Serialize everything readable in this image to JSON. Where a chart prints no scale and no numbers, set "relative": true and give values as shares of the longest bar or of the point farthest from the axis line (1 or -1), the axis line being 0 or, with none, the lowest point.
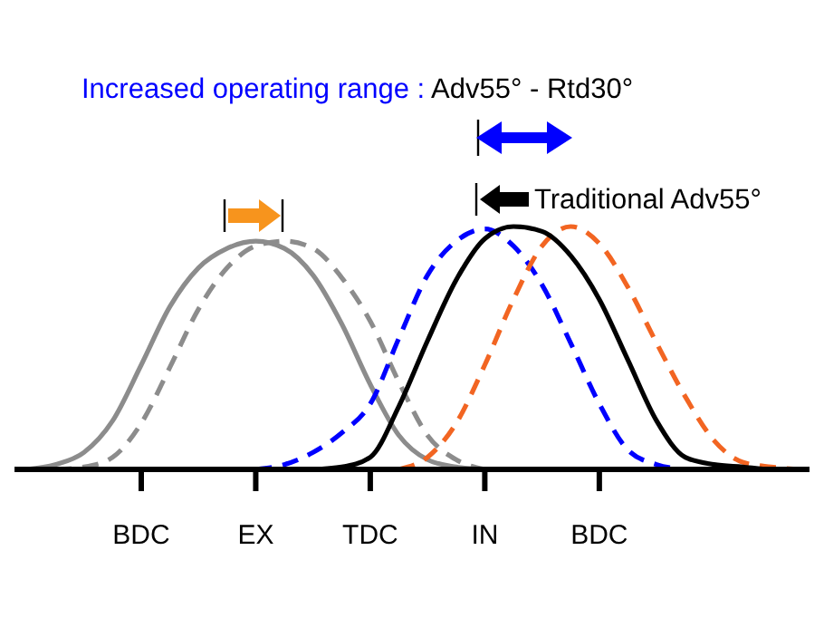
{
  "chart_data": {
    "type": "line",
    "relative": true,
    "title": "Increased operating range : Adv55° - Rtd30°",
    "annotations": [
      "Traditional Adv55°"
    ],
    "categories": [
      null,
      null,
      null,
      null,
      "BDC",
      null,
      null,
      null,
      "EX",
      null,
      null,
      null,
      "TDC",
      null,
      null,
      null,
      "IN",
      null,
      null,
      null,
      "BDC",
      null,
      null,
      null,
      null,
      null,
      null,
      null
    ],
    "grid": false,
    "marker": "none",
    "series": [
      {
        "color": "#8c8c8c",
        "line_style": "solid",
        "values": [
          0,
          0.02,
          0.07,
          0.2,
          0.43,
          0.67,
          0.83,
          0.91,
          0.94,
          0.91,
          0.8,
          0.6,
          0.35,
          0.14,
          0.04,
          0.01,
          0,
          null,
          null,
          null,
          null,
          null,
          null,
          null,
          null,
          null,
          null,
          null
        ]
      },
      {
        "color": "#8c8c8c",
        "line_style": "dashed",
        "values": [
          null,
          0,
          0.01,
          0.05,
          0.19,
          0.42,
          0.66,
          0.83,
          0.92,
          0.94,
          0.91,
          0.79,
          0.61,
          0.36,
          0.14,
          0.04,
          0,
          null,
          null,
          null,
          null,
          null,
          null,
          null,
          null,
          null,
          null,
          null
        ]
      },
      {
        "color": "#0000ff",
        "line_style": "dashed",
        "values": [
          null,
          null,
          null,
          null,
          null,
          null,
          null,
          null,
          0,
          0.02,
          0.07,
          0.15,
          0.27,
          0.54,
          0.8,
          0.94,
          0.99,
          0.92,
          0.76,
          0.52,
          0.27,
          0.08,
          0.02,
          0,
          null,
          null,
          null,
          null
        ]
      },
      {
        "color": "#f26522",
        "line_style": "dashed",
        "values": [
          null,
          null,
          null,
          null,
          null,
          null,
          null,
          null,
          null,
          null,
          null,
          null,
          null,
          0,
          0.05,
          0.19,
          0.43,
          0.7,
          0.92,
          1,
          0.93,
          0.75,
          0.52,
          0.3,
          0.12,
          0.03,
          0.01,
          0
        ]
      },
      {
        "color": "#000000",
        "line_style": "solid",
        "values": [
          null,
          null,
          null,
          null,
          null,
          null,
          null,
          null,
          null,
          null,
          0,
          0.01,
          0.05,
          0.26,
          0.53,
          0.78,
          0.95,
          1,
          0.98,
          0.88,
          0.7,
          0.45,
          0.2,
          0.05,
          0.02,
          0.01,
          0,
          0
        ]
      }
    ]
  }
}
